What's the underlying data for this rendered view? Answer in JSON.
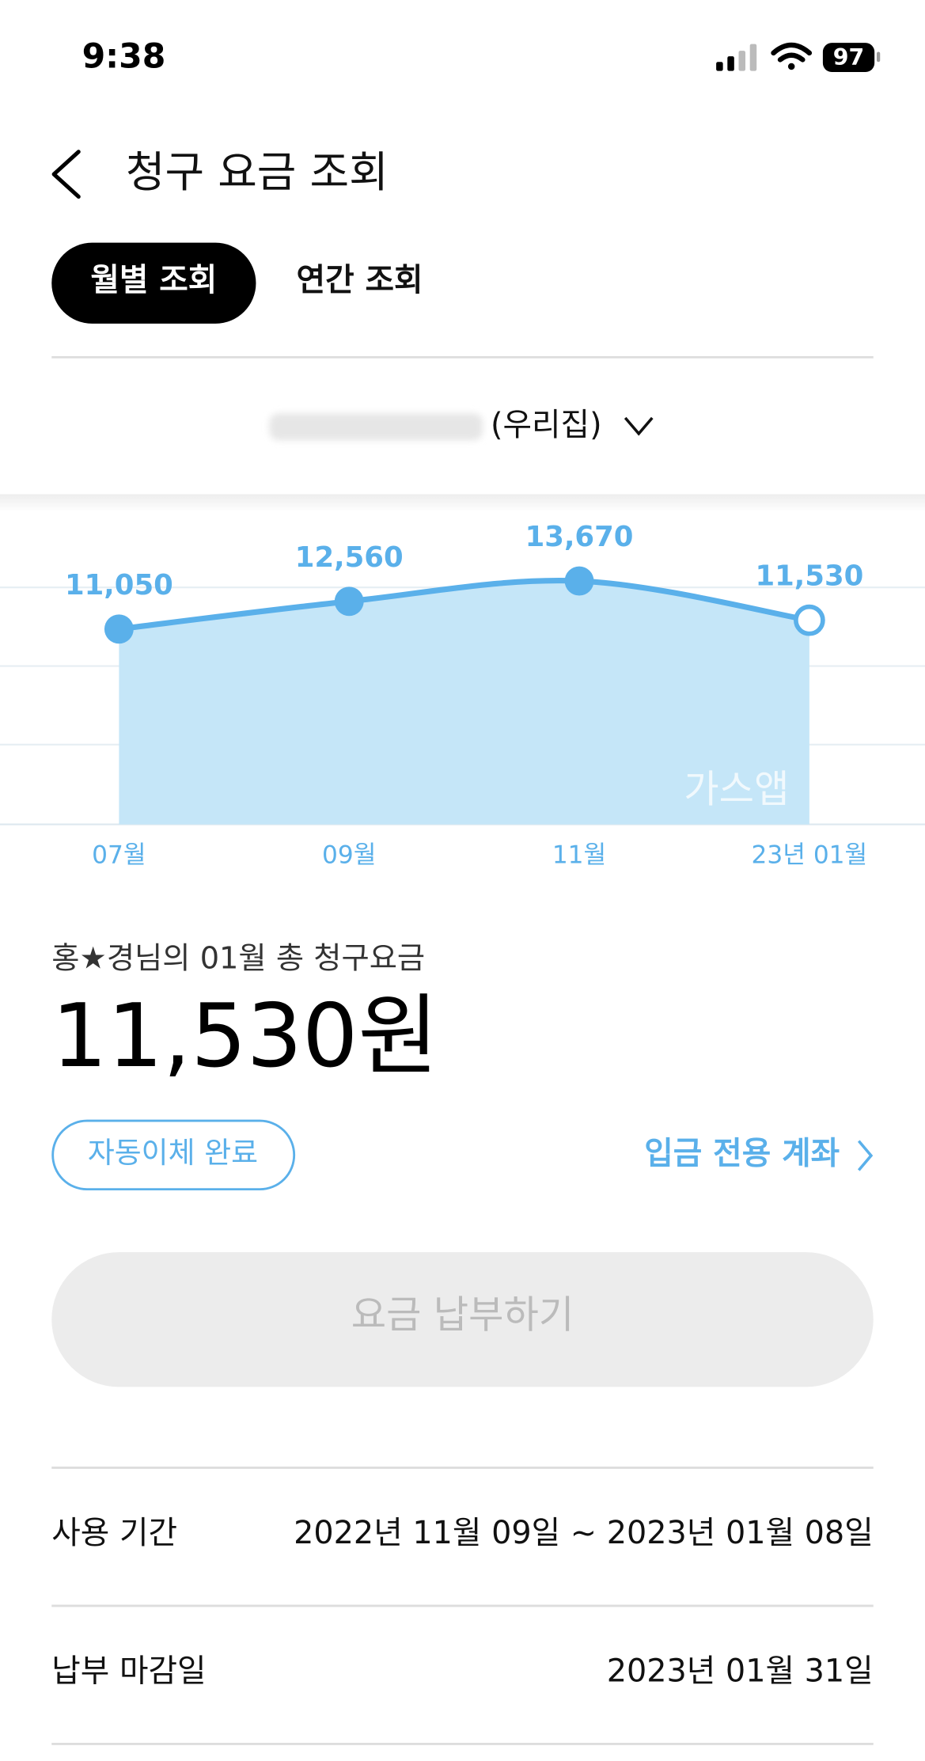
{
  "status_bar": {
    "time": "9:38",
    "battery": "97"
  },
  "header": {
    "title": "청구 요금 조회"
  },
  "tabs": [
    "월별 조회",
    "연간 조회"
  ],
  "account": {
    "label": "(우리집)"
  },
  "chart_data": {
    "type": "line",
    "categories": [
      "07월",
      "09월",
      "11월",
      "23년 01월"
    ],
    "values": [
      11050,
      12560,
      13670,
      11530
    ],
    "value_labels": [
      "11,050",
      "12,560",
      "13,670",
      "11,530"
    ],
    "color": "#5ab0ea",
    "fill": "#c5e6f8",
    "ylim": [
      400,
      18400
    ],
    "watermark": "가스앱"
  },
  "summary": {
    "heading": "홍★경님의 01월 총 청구요금",
    "amount": "11,530원",
    "autopay": "자동이체 완료",
    "account_link": "입금 전용 계좌",
    "pay_button": "요금 납부하기"
  },
  "details": [
    {
      "label": "사용 기간",
      "value": "2022년 11월 09일 ~ 2023년 01월 08일"
    },
    {
      "label": "납부 마감일",
      "value": "2023년 01월 31일"
    }
  ]
}
